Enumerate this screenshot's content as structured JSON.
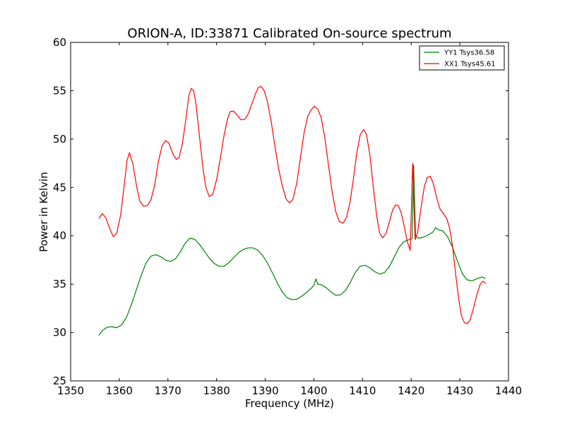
{
  "chart_data": {
    "type": "line",
    "title": "ORION-A, ID:33871 Calibrated On-source spectrum",
    "xlabel": "Frequency (MHz)",
    "ylabel": "Power in Kelvin",
    "xlim": [
      1350,
      1440
    ],
    "ylim": [
      25,
      60
    ],
    "xticks": [
      "1350",
      "1360",
      "1370",
      "1380",
      "1390",
      "1400",
      "1410",
      "1420",
      "1430",
      "1440"
    ],
    "yticks": [
      "25",
      "30",
      "35",
      "40",
      "45",
      "50",
      "55",
      "60"
    ],
    "grid": false,
    "legend_position": "top-right",
    "series": [
      {
        "name": "YY1 Tsys36.58",
        "color": "#008000",
        "points": [
          [
            1355.8,
            29.7
          ],
          [
            1356.5,
            30.2
          ],
          [
            1357.5,
            30.55
          ],
          [
            1358.5,
            30.6
          ],
          [
            1359.5,
            30.5
          ],
          [
            1360.5,
            30.8
          ],
          [
            1361.5,
            31.6
          ],
          [
            1362.5,
            32.9
          ],
          [
            1363.5,
            34.4
          ],
          [
            1364.5,
            35.9
          ],
          [
            1365.5,
            37.2
          ],
          [
            1366.5,
            37.9
          ],
          [
            1367.5,
            38.05
          ],
          [
            1368.5,
            37.85
          ],
          [
            1369.5,
            37.5
          ],
          [
            1370.5,
            37.35
          ],
          [
            1371.5,
            37.6
          ],
          [
            1372.5,
            38.3
          ],
          [
            1373.5,
            39.2
          ],
          [
            1374.5,
            39.75
          ],
          [
            1375.5,
            39.65
          ],
          [
            1376.5,
            39.1
          ],
          [
            1377.5,
            38.4
          ],
          [
            1378.5,
            37.7
          ],
          [
            1379.5,
            37.15
          ],
          [
            1380.5,
            36.85
          ],
          [
            1381.5,
            36.85
          ],
          [
            1382.5,
            37.2
          ],
          [
            1383.5,
            37.75
          ],
          [
            1384.5,
            38.25
          ],
          [
            1385.5,
            38.6
          ],
          [
            1386.5,
            38.75
          ],
          [
            1387.5,
            38.75
          ],
          [
            1388.5,
            38.5
          ],
          [
            1389.5,
            37.95
          ],
          [
            1390.5,
            37.15
          ],
          [
            1391.5,
            36.15
          ],
          [
            1392.5,
            35.1
          ],
          [
            1393.5,
            34.2
          ],
          [
            1394.5,
            33.6
          ],
          [
            1395.5,
            33.4
          ],
          [
            1396.5,
            33.45
          ],
          [
            1397.5,
            33.75
          ],
          [
            1398.5,
            34.15
          ],
          [
            1399.5,
            34.6
          ],
          [
            1400.0,
            34.9
          ],
          [
            1400.4,
            35.55
          ],
          [
            1400.8,
            35.0
          ],
          [
            1401.5,
            34.95
          ],
          [
            1402.5,
            34.65
          ],
          [
            1403.5,
            34.2
          ],
          [
            1404.5,
            33.85
          ],
          [
            1405.5,
            33.9
          ],
          [
            1406.5,
            34.35
          ],
          [
            1407.5,
            35.2
          ],
          [
            1408.5,
            36.2
          ],
          [
            1409.5,
            36.85
          ],
          [
            1410.5,
            36.95
          ],
          [
            1411.5,
            36.7
          ],
          [
            1412.5,
            36.3
          ],
          [
            1413.5,
            36.05
          ],
          [
            1414.5,
            36.2
          ],
          [
            1415.5,
            36.8
          ],
          [
            1416.5,
            37.8
          ],
          [
            1417.5,
            38.8
          ],
          [
            1418.5,
            39.4
          ],
          [
            1419.5,
            39.6
          ],
          [
            1420.2,
            39.7
          ],
          [
            1420.5,
            47.3
          ],
          [
            1420.9,
            40.0
          ],
          [
            1421.5,
            39.75
          ],
          [
            1422.5,
            39.85
          ],
          [
            1423.5,
            40.1
          ],
          [
            1424.5,
            40.4
          ],
          [
            1425.0,
            40.85
          ],
          [
            1425.5,
            40.65
          ],
          [
            1426.5,
            40.5
          ],
          [
            1427.5,
            39.9
          ],
          [
            1428.5,
            38.8
          ],
          [
            1429.5,
            37.4
          ],
          [
            1430.5,
            36.1
          ],
          [
            1431.5,
            35.45
          ],
          [
            1432.5,
            35.35
          ],
          [
            1433.5,
            35.55
          ],
          [
            1434.5,
            35.75
          ],
          [
            1435.3,
            35.6
          ]
        ]
      },
      {
        "name": "XX1 Tsys45.61",
        "color": "#ff0000",
        "points": [
          [
            1355.8,
            41.8
          ],
          [
            1356.5,
            42.3
          ],
          [
            1357.2,
            41.9
          ],
          [
            1358.0,
            40.8
          ],
          [
            1358.8,
            39.9
          ],
          [
            1359.5,
            40.3
          ],
          [
            1360.3,
            42.2
          ],
          [
            1361.0,
            45.2
          ],
          [
            1361.6,
            47.8
          ],
          [
            1362.1,
            48.6
          ],
          [
            1362.8,
            47.4
          ],
          [
            1363.5,
            45.3
          ],
          [
            1364.2,
            43.6
          ],
          [
            1365.0,
            43.05
          ],
          [
            1365.8,
            43.15
          ],
          [
            1366.5,
            43.7
          ],
          [
            1367.3,
            45.3
          ],
          [
            1368.0,
            47.6
          ],
          [
            1368.8,
            49.3
          ],
          [
            1369.5,
            49.85
          ],
          [
            1370.2,
            49.6
          ],
          [
            1371.0,
            48.5
          ],
          [
            1371.7,
            47.9
          ],
          [
            1372.3,
            48.1
          ],
          [
            1373.0,
            49.6
          ],
          [
            1373.7,
            52.1
          ],
          [
            1374.3,
            54.5
          ],
          [
            1374.8,
            55.25
          ],
          [
            1375.3,
            55.0
          ],
          [
            1375.8,
            53.5
          ],
          [
            1376.5,
            50.2
          ],
          [
            1377.2,
            47.0
          ],
          [
            1377.8,
            45.0
          ],
          [
            1378.5,
            44.05
          ],
          [
            1379.2,
            44.3
          ],
          [
            1380.0,
            45.8
          ],
          [
            1380.8,
            48.1
          ],
          [
            1381.5,
            50.3
          ],
          [
            1382.2,
            52.0
          ],
          [
            1382.8,
            52.85
          ],
          [
            1383.5,
            52.9
          ],
          [
            1384.2,
            52.5
          ],
          [
            1385.0,
            52.0
          ],
          [
            1385.8,
            52.05
          ],
          [
            1386.5,
            52.6
          ],
          [
            1387.3,
            53.7
          ],
          [
            1388.0,
            54.7
          ],
          [
            1388.6,
            55.35
          ],
          [
            1389.1,
            55.45
          ],
          [
            1389.7,
            55.1
          ],
          [
            1390.4,
            54.0
          ],
          [
            1391.2,
            51.9
          ],
          [
            1392.0,
            49.2
          ],
          [
            1392.8,
            46.8
          ],
          [
            1393.6,
            45.0
          ],
          [
            1394.3,
            43.8
          ],
          [
            1395.0,
            43.4
          ],
          [
            1395.7,
            43.8
          ],
          [
            1396.5,
            45.5
          ],
          [
            1397.3,
            48.3
          ],
          [
            1398.0,
            50.7
          ],
          [
            1398.7,
            52.3
          ],
          [
            1399.4,
            53.0
          ],
          [
            1400.1,
            53.4
          ],
          [
            1400.8,
            53.1
          ],
          [
            1401.5,
            52.2
          ],
          [
            1402.2,
            50.3
          ],
          [
            1403.0,
            47.3
          ],
          [
            1403.8,
            44.4
          ],
          [
            1404.5,
            42.5
          ],
          [
            1405.2,
            41.5
          ],
          [
            1406.0,
            41.3
          ],
          [
            1406.7,
            41.9
          ],
          [
            1407.4,
            43.4
          ],
          [
            1408.1,
            45.8
          ],
          [
            1408.8,
            48.5
          ],
          [
            1409.5,
            50.4
          ],
          [
            1410.2,
            51.0
          ],
          [
            1410.8,
            50.5
          ],
          [
            1411.5,
            48.4
          ],
          [
            1412.2,
            45.1
          ],
          [
            1412.9,
            42.1
          ],
          [
            1413.5,
            40.3
          ],
          [
            1414.1,
            39.8
          ],
          [
            1414.8,
            40.2
          ],
          [
            1415.5,
            41.4
          ],
          [
            1416.2,
            42.7
          ],
          [
            1416.8,
            43.2
          ],
          [
            1417.4,
            43.1
          ],
          [
            1418.0,
            42.3
          ],
          [
            1418.6,
            40.9
          ],
          [
            1419.2,
            39.4
          ],
          [
            1419.8,
            38.5
          ],
          [
            1420.3,
            47.5
          ],
          [
            1420.8,
            39.6
          ],
          [
            1421.3,
            40.3
          ],
          [
            1422.0,
            42.8
          ],
          [
            1422.7,
            45.1
          ],
          [
            1423.3,
            46.05
          ],
          [
            1423.9,
            46.15
          ],
          [
            1424.5,
            45.5
          ],
          [
            1425.2,
            44.0
          ],
          [
            1425.9,
            42.8
          ],
          [
            1426.6,
            42.3
          ],
          [
            1427.3,
            41.8
          ],
          [
            1427.9,
            40.8
          ],
          [
            1428.5,
            38.9
          ],
          [
            1429.1,
            36.2
          ],
          [
            1429.7,
            33.7
          ],
          [
            1430.3,
            31.8
          ],
          [
            1430.9,
            31.05
          ],
          [
            1431.5,
            30.9
          ],
          [
            1432.1,
            31.3
          ],
          [
            1432.8,
            32.5
          ],
          [
            1433.5,
            33.9
          ],
          [
            1434.2,
            35.0
          ],
          [
            1434.7,
            35.3
          ],
          [
            1435.3,
            35.1
          ]
        ]
      }
    ]
  }
}
